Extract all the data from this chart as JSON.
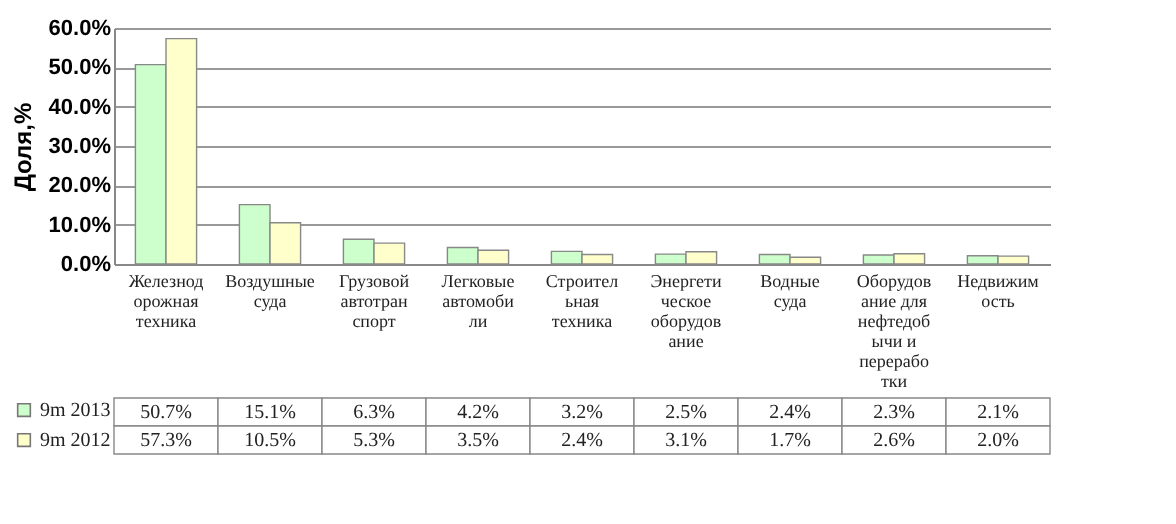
{
  "chart_data": {
    "type": "bar",
    "ylabel": "Доля,%",
    "categories": [
      "Железнодорожная техника",
      "Воздушные суда",
      "Грузовой автотранспорт",
      "Легковые автомобили",
      "Строительная техника",
      "Энергетическое оборудование",
      "Водные суда",
      "Оборудование для нефтедобычи и переработки",
      "Недвижимость"
    ],
    "series": [
      {
        "name": "9m 2013",
        "color": "#ccffcc",
        "values": [
          50.7,
          15.1,
          6.3,
          4.2,
          3.2,
          2.5,
          2.4,
          2.3,
          2.1
        ],
        "value_labels": [
          "50.7%",
          "15.1%",
          "6.3%",
          "4.2%",
          "3.2%",
          "2.5%",
          "2.4%",
          "2.3%",
          "2.1%"
        ]
      },
      {
        "name": "9m 2012",
        "color": "#ffffcc",
        "values": [
          57.3,
          10.5,
          5.3,
          3.5,
          2.4,
          3.1,
          1.7,
          2.6,
          2.0
        ],
        "value_labels": [
          "57.3%",
          "10.5%",
          "5.3%",
          "3.5%",
          "2.4%",
          "3.1%",
          "1.7%",
          "2.6%",
          "2.0%"
        ]
      }
    ],
    "ylim": [
      0,
      60
    ],
    "yticks": [
      {
        "value": 0,
        "label": "0.0%"
      },
      {
        "value": 10,
        "label": "10.0%"
      },
      {
        "value": 20,
        "label": "20.0%"
      },
      {
        "value": 30,
        "label": "30.0%"
      },
      {
        "value": 40,
        "label": "40.0%"
      },
      {
        "value": 50,
        "label": "50.0%"
      },
      {
        "value": 60,
        "label": "60.0%"
      }
    ],
    "grid": "y",
    "legend": "bottom left"
  }
}
